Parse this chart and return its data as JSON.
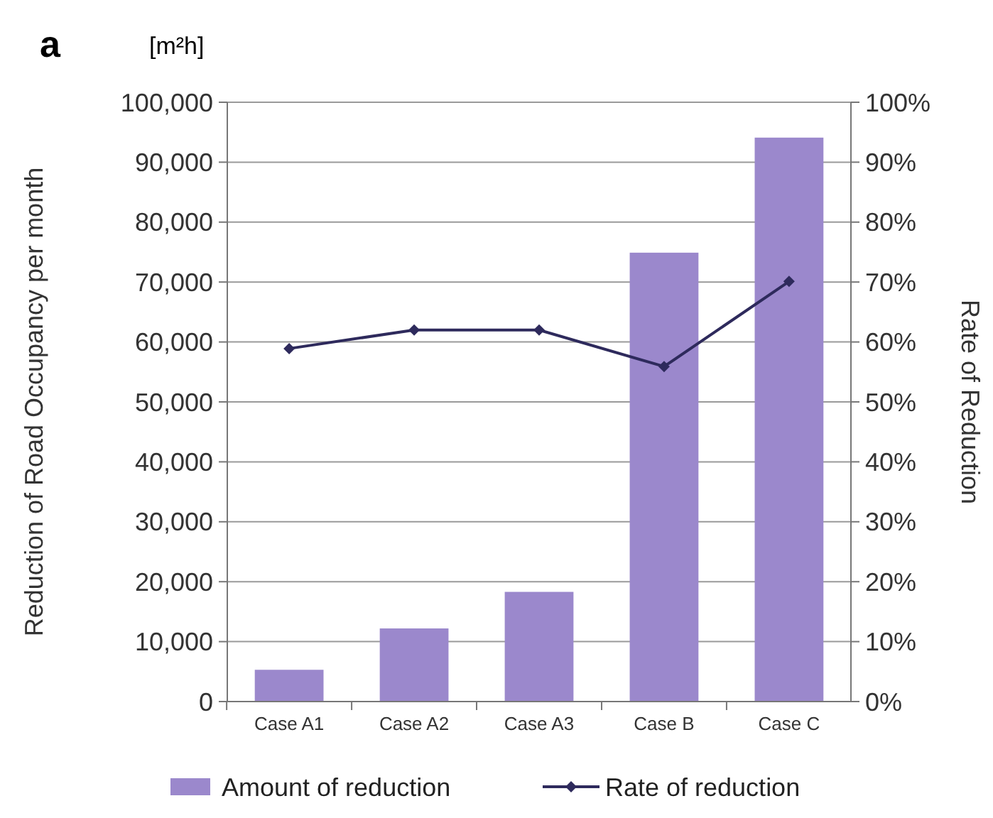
{
  "chart_data": {
    "type": "bar",
    "title": "a",
    "annotations": [
      "[m²h]"
    ],
    "categories": [
      "Case A1",
      "Case A2",
      "Case A3",
      "Case B",
      "Case C"
    ],
    "ylabel": "Reduction of Road Occupancy per month",
    "y2label": "Rate of  Reduction",
    "series": [
      {
        "name": "Amount of reduction",
        "color": "#9b88cc",
        "values": [
          5300,
          12200,
          18300,
          74900,
          94100
        ]
      },
      {
        "name": "Rate of reduction",
        "type": "line",
        "axis": "y2",
        "color": "#2e2a5c",
        "marker": "diamond",
        "values": [
          58.9,
          62.0,
          62.0,
          55.9,
          70.1
        ]
      }
    ],
    "ylim": [
      0,
      100000
    ],
    "yticks": [
      {
        "value": 0,
        "label": "0"
      },
      {
        "value": 10000,
        "label": "10,000"
      },
      {
        "value": 20000,
        "label": "20,000"
      },
      {
        "value": 30000,
        "label": "30,000"
      },
      {
        "value": 40000,
        "label": "40,000"
      },
      {
        "value": 50000,
        "label": "50,000"
      },
      {
        "value": 60000,
        "label": "60,000"
      },
      {
        "value": 70000,
        "label": "70,000"
      },
      {
        "value": 80000,
        "label": "80,000"
      },
      {
        "value": 90000,
        "label": "90,000"
      },
      {
        "value": 100000,
        "label": "100,000"
      }
    ],
    "y2lim": [
      0,
      100
    ],
    "y2ticks": [
      {
        "value": 0,
        "label": "0%"
      },
      {
        "value": 10,
        "label": "10%"
      },
      {
        "value": 20,
        "label": "20%"
      },
      {
        "value": 30,
        "label": "30%"
      },
      {
        "value": 40,
        "label": "40%"
      },
      {
        "value": 50,
        "label": "50%"
      },
      {
        "value": 60,
        "label": "60%"
      },
      {
        "value": 70,
        "label": "70%"
      },
      {
        "value": 80,
        "label": "80%"
      },
      {
        "value": 90,
        "label": "90%"
      },
      {
        "value": 100,
        "label": "100%"
      }
    ],
    "grid": "y",
    "legend": "bottom"
  }
}
